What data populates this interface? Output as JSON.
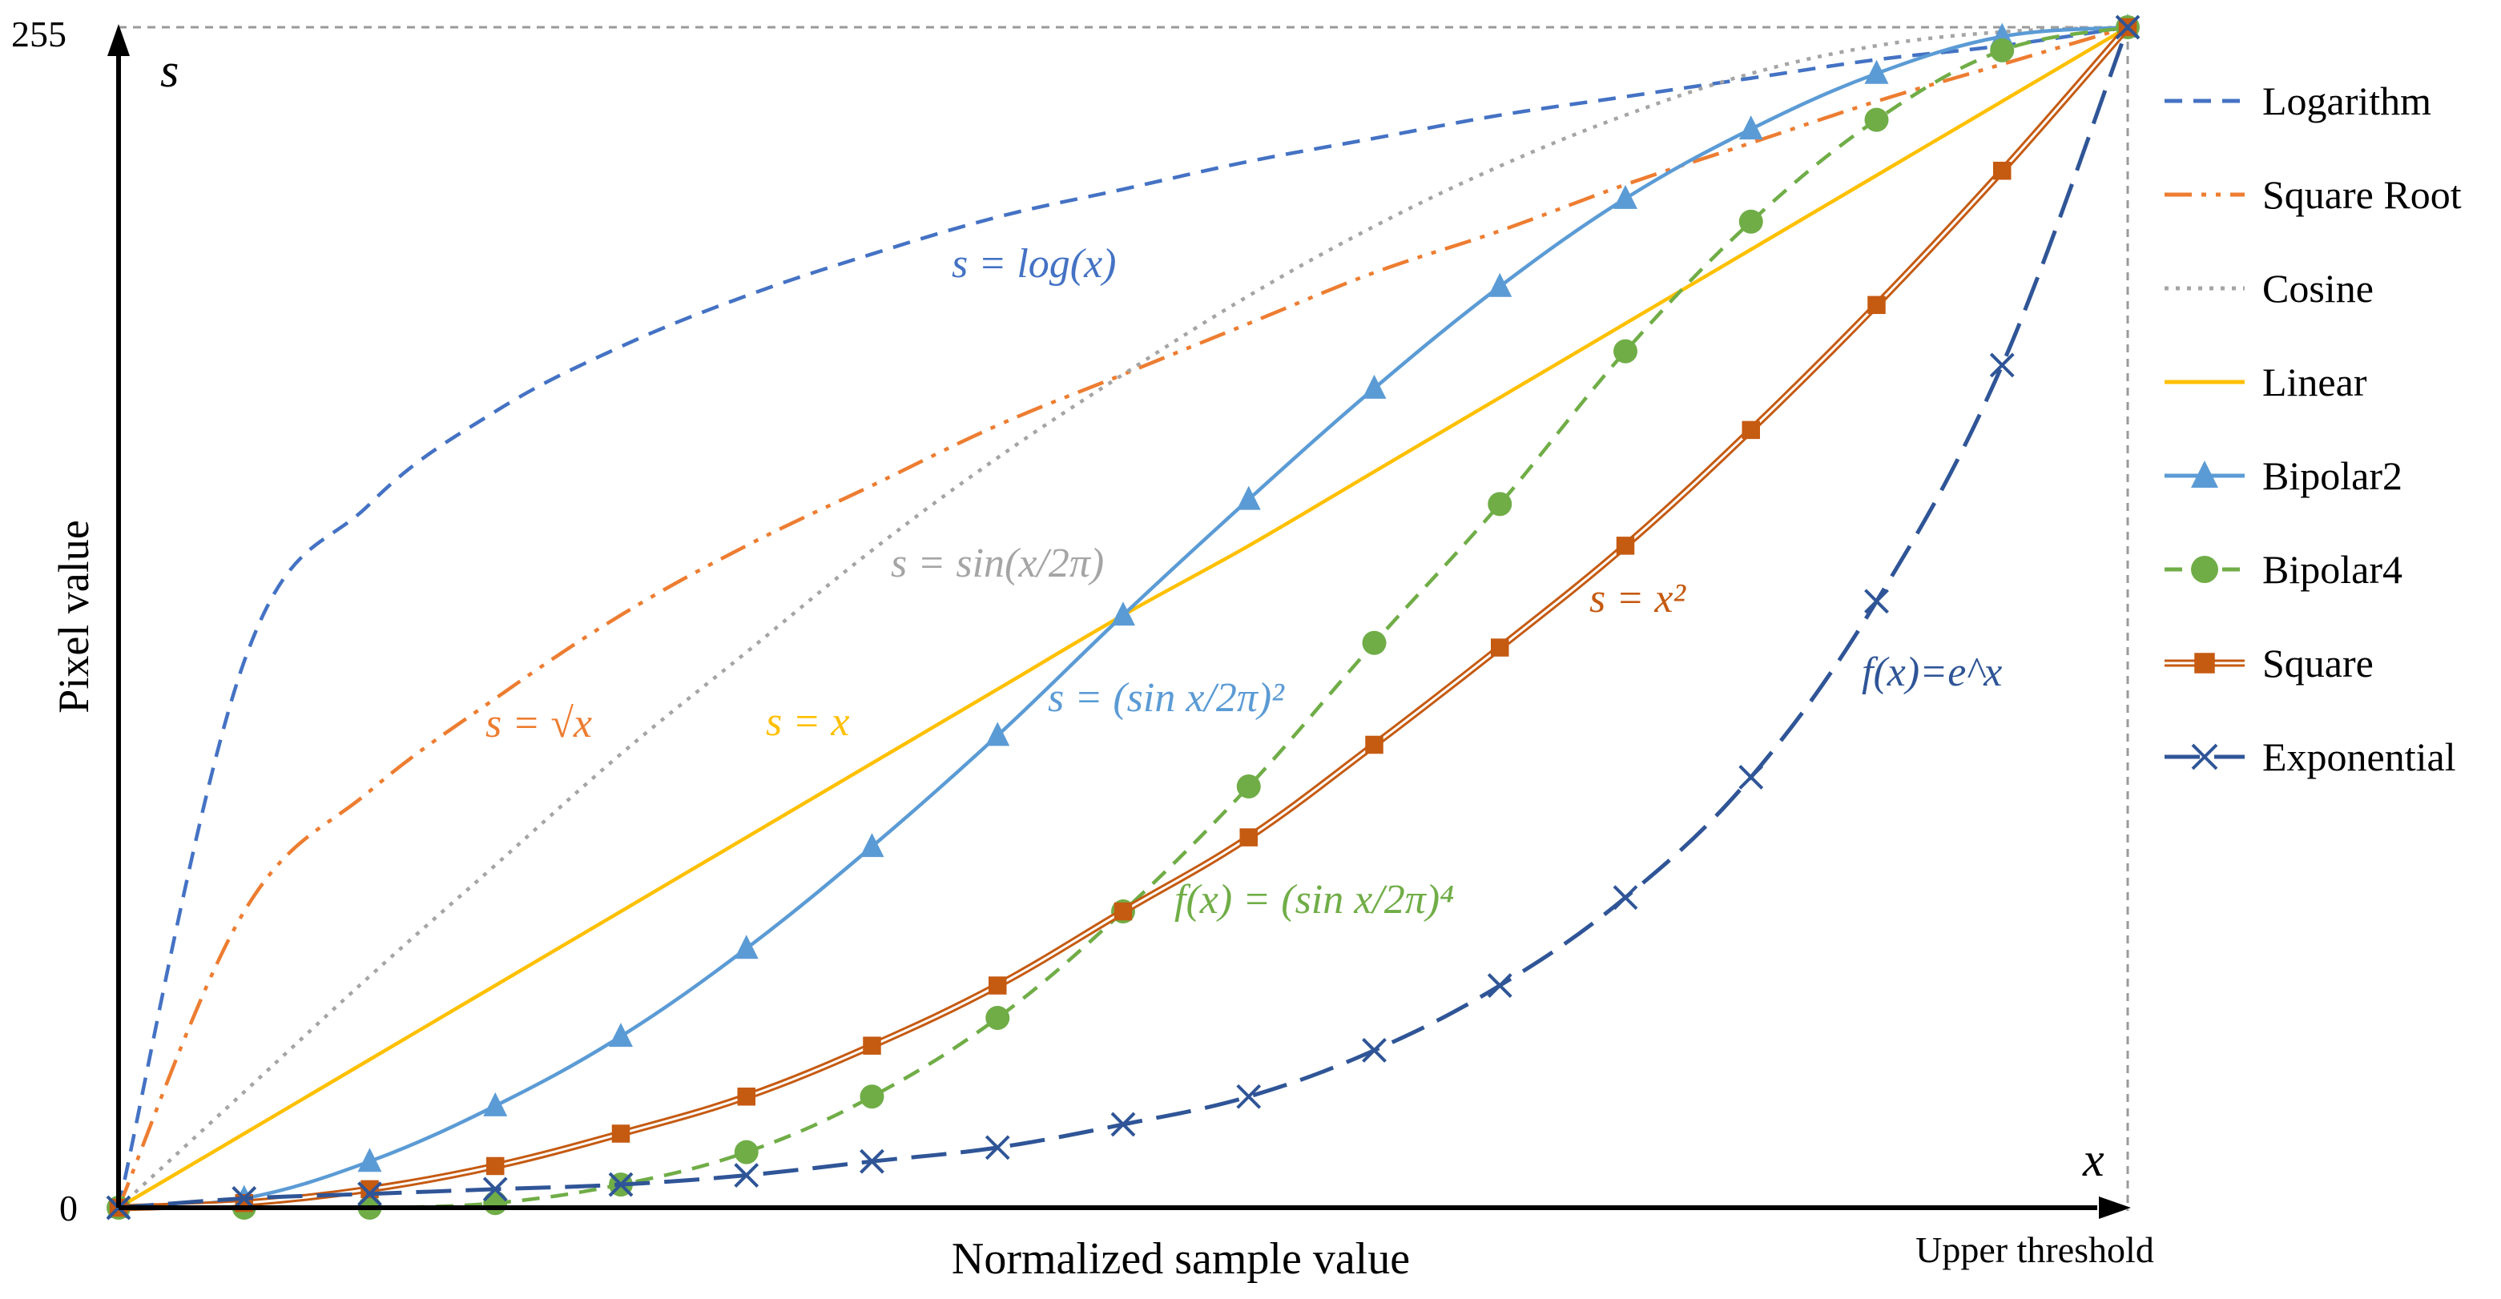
{
  "chart_data": {
    "type": "line",
    "title": "",
    "xlabel": "Normalized sample value",
    "ylabel": "Pixel value",
    "x_axis_symbol": "x",
    "y_axis_symbol": "s",
    "y_ticks": [
      "0",
      "255"
    ],
    "x_end_label": "Upper threshold",
    "xlim": [
      0,
      1
    ],
    "ylim": [
      0,
      255
    ],
    "grid": false,
    "legend_position": "right",
    "x": [
      0,
      0.0625,
      0.125,
      0.1875,
      0.25,
      0.3125,
      0.375,
      0.4375,
      0.5,
      0.5625,
      0.625,
      0.6875,
      0.75,
      0.8125,
      0.875,
      0.9375,
      1
    ],
    "series": [
      {
        "name": "Logarithm",
        "color": "#4472C4",
        "style": "dash",
        "marker": "none",
        "values": [
          0,
          118,
          152,
          172,
          186,
          197,
          206,
          214,
          220,
          226,
          231,
          236,
          240,
          244,
          248,
          251,
          255
        ]
      },
      {
        "name": "Square Root",
        "color": "#ED7D31",
        "style": "dashdotdot",
        "marker": "none",
        "values": [
          0,
          64,
          90,
          110,
          128,
          143,
          156,
          169,
          180,
          191,
          202,
          211,
          221,
          230,
          239,
          247,
          255
        ]
      },
      {
        "name": "Cosine",
        "color": "#A5A5A5",
        "style": "dot",
        "marker": "none",
        "values": [
          0,
          25,
          50,
          74,
          98,
          120,
          142,
          162,
          180,
          197,
          212,
          225,
          236,
          245,
          251,
          254,
          255
        ]
      },
      {
        "name": "Linear",
        "color": "#FFC000",
        "style": "solid",
        "marker": "none",
        "values": [
          0,
          16,
          32,
          48,
          64,
          80,
          96,
          112,
          128,
          143,
          159,
          175,
          191,
          207,
          223,
          239,
          255
        ]
      },
      {
        "name": "Bipolar2",
        "color": "#5B9BD5",
        "style": "solid",
        "marker": "triangle",
        "values": [
          0,
          2,
          10,
          22,
          37,
          56,
          78,
          102,
          128,
          153,
          177,
          199,
          218,
          233,
          245,
          253,
          255
        ]
      },
      {
        "name": "Bipolar4",
        "color": "#70AD47",
        "style": "dash",
        "marker": "circle",
        "values": [
          0,
          0,
          0,
          1,
          5,
          12,
          24,
          41,
          64,
          91,
          122,
          152,
          185,
          213,
          235,
          250,
          255
        ]
      },
      {
        "name": "Square",
        "color": "#C55A11",
        "style": "double",
        "marker": "square",
        "values": [
          0,
          1,
          4,
          9,
          16,
          24,
          35,
          48,
          64,
          80,
          100,
          121,
          143,
          168,
          195,
          224,
          255
        ]
      },
      {
        "name": "Exponential",
        "color": "#2F5597",
        "style": "longdash",
        "marker": "x",
        "values": [
          0,
          2,
          3,
          4,
          5,
          7,
          10,
          13,
          18,
          24,
          34,
          48,
          67,
          93,
          131,
          182,
          255
        ]
      }
    ],
    "annotations": [
      {
        "id": "log",
        "text": "s = log(x)",
        "color": "#4472C4"
      },
      {
        "id": "sqrt",
        "text": "s = √x",
        "color": "#ED7D31"
      },
      {
        "id": "sin",
        "text": "s = sin(x/2π)",
        "color": "#A5A5A5"
      },
      {
        "id": "lin",
        "text": "s = x",
        "color": "#FFC000"
      },
      {
        "id": "bip2",
        "text": "s = (sin x/2π)²",
        "color": "#5B9BD5"
      },
      {
        "id": "sq",
        "text": "s = x²",
        "color": "#C55A11"
      },
      {
        "id": "bip4",
        "text": "f(x) = (sin x/2π)⁴",
        "color": "#70AD47"
      },
      {
        "id": "exp",
        "text": "f(x)=e^x",
        "color": "#2F5597"
      }
    ]
  }
}
